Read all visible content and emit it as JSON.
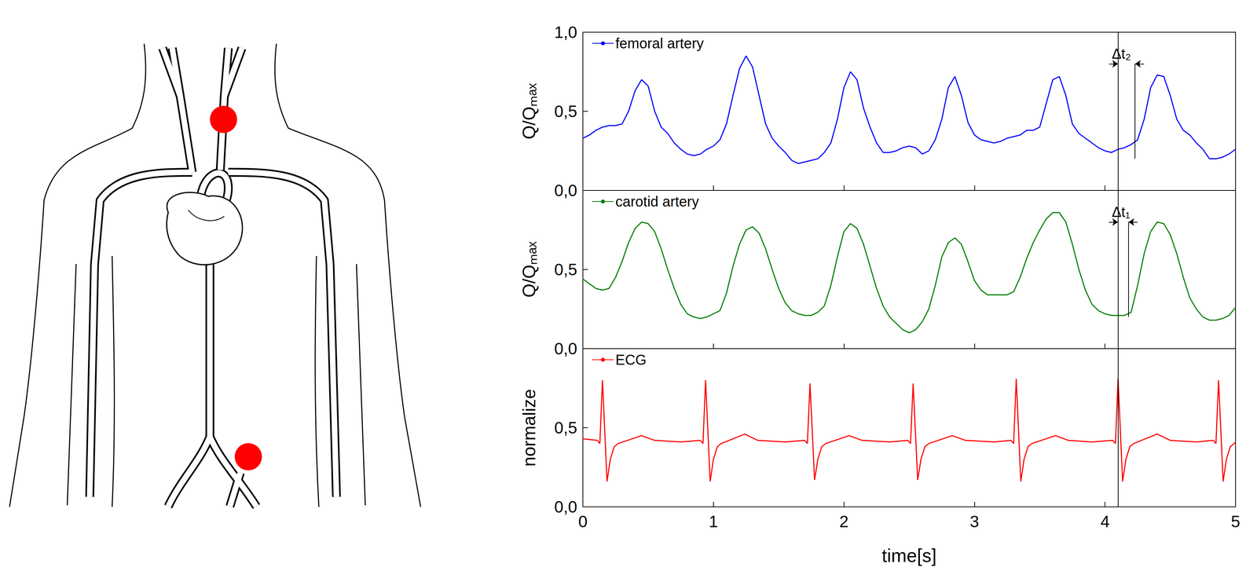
{
  "chart_data": [
    {
      "type": "line",
      "x": [
        0,
        0.05,
        0.1,
        0.15,
        0.2,
        0.25,
        0.3,
        0.35,
        0.4,
        0.45,
        0.5,
        0.55,
        0.6,
        0.65,
        0.7,
        0.75,
        0.8,
        0.85,
        0.9,
        0.95,
        1,
        1.05,
        1.1,
        1.15,
        1.2,
        1.25,
        1.3,
        1.35,
        1.4,
        1.45,
        1.5,
        1.55,
        1.6,
        1.65,
        1.7,
        1.75,
        1.8,
        1.85,
        1.9,
        1.95,
        2,
        2.05,
        2.1,
        2.15,
        2.2,
        2.25,
        2.3,
        2.35,
        2.4,
        2.45,
        2.5,
        2.55,
        2.6,
        2.65,
        2.7,
        2.75,
        2.8,
        2.85,
        2.9,
        2.95,
        3,
        3.05,
        3.1,
        3.15,
        3.2,
        3.25,
        3.3,
        3.35,
        3.4,
        3.45,
        3.5,
        3.55,
        3.6,
        3.65,
        3.7,
        3.75,
        3.8,
        3.85,
        3.9,
        3.95,
        4,
        4.05,
        4.1,
        4.15,
        4.2,
        4.25,
        4.3,
        4.35,
        4.4,
        4.45,
        4.5,
        4.55,
        4.6,
        4.65,
        4.7,
        4.75,
        4.8,
        4.85,
        4.9,
        4.95,
        5
      ],
      "series": [
        {
          "name": "femoral artery",
          "color": "#0000ff",
          "values": [
            0.33,
            0.35,
            0.38,
            0.4,
            0.41,
            0.41,
            0.42,
            0.5,
            0.63,
            0.7,
            0.66,
            0.5,
            0.4,
            0.36,
            0.3,
            0.26,
            0.23,
            0.22,
            0.23,
            0.26,
            0.28,
            0.32,
            0.42,
            0.6,
            0.77,
            0.85,
            0.78,
            0.6,
            0.42,
            0.33,
            0.28,
            0.24,
            0.19,
            0.17,
            0.18,
            0.19,
            0.2,
            0.24,
            0.3,
            0.45,
            0.65,
            0.75,
            0.7,
            0.52,
            0.4,
            0.3,
            0.24,
            0.24,
            0.25,
            0.27,
            0.28,
            0.27,
            0.23,
            0.25,
            0.32,
            0.45,
            0.65,
            0.72,
            0.6,
            0.43,
            0.35,
            0.32,
            0.31,
            0.3,
            0.31,
            0.33,
            0.34,
            0.35,
            0.38,
            0.38,
            0.4,
            0.55,
            0.7,
            0.72,
            0.6,
            0.42,
            0.36,
            0.33,
            0.3,
            0.27,
            0.25,
            0.24,
            0.26,
            0.27,
            0.29,
            0.32,
            0.45,
            0.65,
            0.73,
            0.72,
            0.6,
            0.45,
            0.38,
            0.35,
            0.3,
            0.26,
            0.2,
            0.2,
            0.21,
            0.23,
            0.26
          ]
        }
      ],
      "xlim": [
        0,
        5
      ],
      "xticks": [
        0,
        1,
        2,
        3,
        4,
        5
      ],
      "ylim": [
        0,
        1
      ],
      "yticks": [
        {
          "value": 0,
          "label": "0,0"
        },
        {
          "value": 0.5,
          "label": "0,5"
        },
        {
          "value": 1,
          "label": "1,0"
        }
      ],
      "y_label": "Q/Qₘₐₓ",
      "tick_labels": "y",
      "legend": "upper left",
      "annotations": [
        {
          "text": "Δt₂",
          "x_start": 4.1,
          "x_end": 4.23
        }
      ]
    },
    {
      "type": "line",
      "x": [
        0,
        0.05,
        0.1,
        0.15,
        0.2,
        0.25,
        0.3,
        0.35,
        0.4,
        0.45,
        0.5,
        0.55,
        0.6,
        0.65,
        0.7,
        0.75,
        0.8,
        0.85,
        0.9,
        0.95,
        1,
        1.05,
        1.1,
        1.15,
        1.2,
        1.25,
        1.3,
        1.35,
        1.4,
        1.45,
        1.5,
        1.55,
        1.6,
        1.65,
        1.7,
        1.75,
        1.8,
        1.85,
        1.9,
        1.95,
        2,
        2.05,
        2.1,
        2.15,
        2.2,
        2.25,
        2.3,
        2.35,
        2.4,
        2.45,
        2.5,
        2.55,
        2.6,
        2.65,
        2.7,
        2.75,
        2.8,
        2.85,
        2.9,
        2.95,
        3,
        3.05,
        3.1,
        3.15,
        3.2,
        3.25,
        3.3,
        3.35,
        3.4,
        3.45,
        3.5,
        3.55,
        3.6,
        3.65,
        3.7,
        3.75,
        3.8,
        3.85,
        3.9,
        3.95,
        4,
        4.05,
        4.1,
        4.15,
        4.2,
        4.25,
        4.3,
        4.35,
        4.4,
        4.45,
        4.5,
        4.55,
        4.6,
        4.65,
        4.7,
        4.75,
        4.8,
        4.85,
        4.9,
        4.95,
        5
      ],
      "series": [
        {
          "name": "carotid artery",
          "color": "#007f00",
          "values": [
            0.44,
            0.41,
            0.38,
            0.37,
            0.38,
            0.45,
            0.55,
            0.67,
            0.76,
            0.8,
            0.79,
            0.74,
            0.63,
            0.5,
            0.38,
            0.28,
            0.22,
            0.2,
            0.19,
            0.2,
            0.22,
            0.24,
            0.35,
            0.52,
            0.66,
            0.75,
            0.77,
            0.73,
            0.63,
            0.5,
            0.38,
            0.29,
            0.24,
            0.22,
            0.21,
            0.21,
            0.23,
            0.27,
            0.4,
            0.58,
            0.74,
            0.79,
            0.76,
            0.66,
            0.52,
            0.38,
            0.27,
            0.2,
            0.16,
            0.12,
            0.1,
            0.12,
            0.17,
            0.25,
            0.4,
            0.58,
            0.67,
            0.7,
            0.66,
            0.55,
            0.43,
            0.37,
            0.34,
            0.34,
            0.34,
            0.34,
            0.36,
            0.45,
            0.57,
            0.67,
            0.75,
            0.82,
            0.86,
            0.86,
            0.8,
            0.66,
            0.5,
            0.37,
            0.28,
            0.24,
            0.22,
            0.21,
            0.21,
            0.21,
            0.23,
            0.4,
            0.6,
            0.74,
            0.8,
            0.79,
            0.72,
            0.6,
            0.45,
            0.32,
            0.25,
            0.2,
            0.18,
            0.18,
            0.19,
            0.21,
            0.26
          ]
        }
      ],
      "xlim": [
        0,
        5
      ],
      "xticks": [
        0,
        1,
        2,
        3,
        4,
        5
      ],
      "ylim": [
        0,
        1
      ],
      "yticks": [
        {
          "value": 0,
          "label": "0,0"
        },
        {
          "value": 0.5,
          "label": "0,5"
        }
      ],
      "y_label": "Q/Qₘₐₓ",
      "tick_labels": "y",
      "legend": "upper left",
      "annotations": [
        {
          "text": "Δt₁",
          "x_start": 4.1,
          "x_end": 4.18
        }
      ]
    },
    {
      "type": "line",
      "x": [
        0,
        0.11,
        0.13,
        0.15,
        0.185,
        0.21,
        0.24,
        0.27,
        0.45,
        0.55,
        0.75,
        0.9,
        0.92,
        0.94,
        0.975,
        1,
        1.03,
        1.06,
        1.24,
        1.34,
        1.55,
        1.7,
        1.72,
        1.74,
        1.775,
        1.8,
        1.83,
        1.86,
        2.04,
        2.14,
        2.35,
        2.49,
        2.51,
        2.53,
        2.565,
        2.59,
        2.62,
        2.65,
        2.83,
        2.93,
        3.15,
        3.28,
        3.3,
        3.32,
        3.355,
        3.38,
        3.41,
        3.44,
        3.62,
        3.72,
        3.9,
        4.06,
        4.08,
        4.1,
        4.135,
        4.16,
        4.19,
        4.22,
        4.4,
        4.5,
        4.7,
        4.83,
        4.85,
        4.87,
        4.905,
        4.93,
        4.96,
        4.99,
        5
      ],
      "series": [
        {
          "name": "ECG",
          "color": "#ff0000",
          "values": [
            0.43,
            0.42,
            0.4,
            0.8,
            0.16,
            0.3,
            0.38,
            0.4,
            0.45,
            0.42,
            0.41,
            0.42,
            0.4,
            0.8,
            0.16,
            0.3,
            0.38,
            0.4,
            0.46,
            0.42,
            0.41,
            0.42,
            0.4,
            0.78,
            0.17,
            0.3,
            0.38,
            0.4,
            0.45,
            0.42,
            0.41,
            0.42,
            0.4,
            0.78,
            0.17,
            0.3,
            0.38,
            0.4,
            0.45,
            0.42,
            0.41,
            0.42,
            0.4,
            0.81,
            0.16,
            0.3,
            0.38,
            0.4,
            0.45,
            0.42,
            0.41,
            0.42,
            0.4,
            0.81,
            0.16,
            0.3,
            0.38,
            0.4,
            0.46,
            0.42,
            0.41,
            0.42,
            0.4,
            0.8,
            0.16,
            0.3,
            0.38,
            0.4,
            0.41
          ]
        }
      ],
      "xlim": [
        0,
        5
      ],
      "xticks": [
        0,
        1,
        2,
        3,
        4,
        5
      ],
      "ylim": [
        0,
        1
      ],
      "yticks": [
        {
          "value": 0,
          "label": "0,0"
        },
        {
          "value": 0.5,
          "label": "0,5"
        }
      ],
      "x_label": "time[s]",
      "y_label": "normalize",
      "legend": "upper left",
      "annotations": [
        {
          "x_start": 4.1
        }
      ]
    }
  ]
}
